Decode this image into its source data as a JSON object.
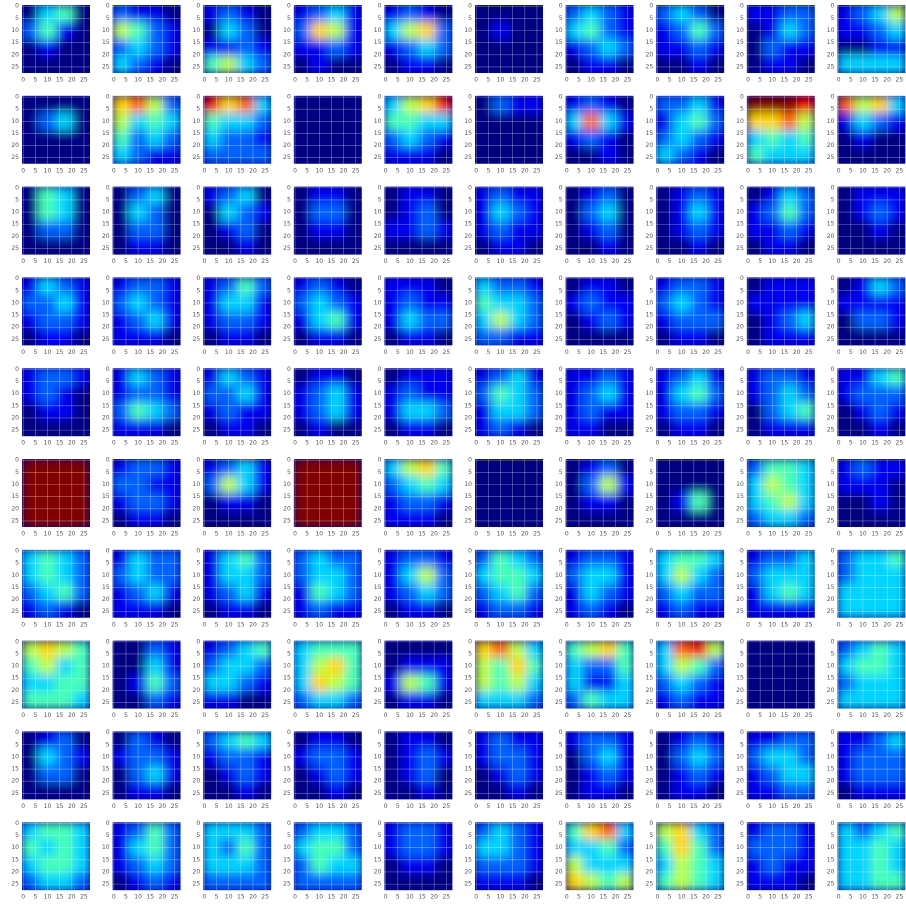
{
  "chart_data": {
    "type": "heatmap-grid",
    "colormap": "jet",
    "zlim": [
      0,
      9
    ],
    "xlim": [
      -0.5,
      27.5
    ],
    "ylim": [
      -0.5,
      27.5
    ],
    "y_inverted": true,
    "xticks": [
      0,
      5,
      10,
      15,
      20,
      25
    ],
    "yticks": [
      0,
      5,
      10,
      15,
      20,
      25
    ],
    "grid": true,
    "columns": 10,
    "panels": [
      [
        0,
        3,
        4,
        0,
        2,
        4,
        1,
        0,
        0,
        1,
        0,
        0,
        0,
        0,
        0,
        0
      ],
      [
        2,
        1,
        1,
        0,
        5,
        4,
        2,
        1,
        2,
        3,
        2,
        1,
        3,
        2,
        1,
        0
      ],
      [
        1,
        2,
        1,
        0,
        0,
        3,
        2,
        0,
        1,
        1,
        2,
        1,
        4,
        5,
        3,
        2
      ],
      [
        1,
        2,
        3,
        1,
        2,
        6,
        5,
        1,
        1,
        1,
        2,
        1,
        0,
        1,
        0,
        0
      ],
      [
        1,
        2,
        1,
        0,
        3,
        5,
        6,
        2,
        1,
        2,
        3,
        2,
        0,
        1,
        1,
        0
      ],
      [
        0,
        0,
        0,
        0,
        0,
        1,
        0,
        0,
        0,
        0,
        0,
        0,
        0,
        0,
        0,
        0
      ],
      [
        2,
        3,
        2,
        1,
        3,
        4,
        2,
        1,
        1,
        2,
        3,
        2,
        0,
        1,
        1,
        0
      ],
      [
        2,
        3,
        2,
        0,
        1,
        2,
        4,
        2,
        1,
        1,
        2,
        1,
        0,
        0,
        1,
        0
      ],
      [
        1,
        1,
        2,
        2,
        0,
        1,
        3,
        2,
        0,
        2,
        1,
        1,
        0,
        1,
        1,
        0
      ],
      [
        1,
        2,
        3,
        5,
        1,
        1,
        2,
        3,
        0,
        0,
        1,
        1,
        3,
        3,
        3,
        3
      ],
      [
        0,
        0,
        0,
        0,
        0,
        2,
        3,
        0,
        0,
        0,
        0,
        0,
        0,
        0,
        0,
        0
      ],
      [
        6,
        7,
        5,
        2,
        5,
        3,
        4,
        3,
        4,
        2,
        3,
        2,
        3,
        2,
        1,
        1
      ],
      [
        8,
        6,
        7,
        3,
        4,
        3,
        3,
        2,
        3,
        2,
        2,
        1,
        2,
        2,
        2,
        2
      ],
      [
        0,
        0,
        0,
        0,
        0,
        0,
        0,
        0,
        0,
        0,
        0,
        0,
        0,
        0,
        0,
        0
      ],
      [
        3,
        5,
        6,
        8,
        4,
        4,
        3,
        3,
        2,
        3,
        2,
        1,
        1,
        1,
        1,
        0
      ],
      [
        0,
        2,
        1,
        1,
        0,
        0,
        0,
        0,
        0,
        0,
        0,
        0,
        0,
        0,
        0,
        0
      ],
      [
        1,
        2,
        1,
        0,
        3,
        7,
        3,
        1,
        1,
        2,
        1,
        0,
        0,
        0,
        1,
        0
      ],
      [
        2,
        2,
        3,
        1,
        1,
        3,
        4,
        2,
        2,
        3,
        2,
        1,
        3,
        2,
        1,
        0
      ],
      [
        9,
        9,
        9,
        8,
        6,
        6,
        7,
        5,
        3,
        4,
        3,
        4,
        4,
        3,
        3,
        3
      ],
      [
        7,
        5,
        6,
        3,
        1,
        3,
        2,
        1,
        0,
        1,
        0,
        0,
        0,
        0,
        0,
        0
      ],
      [
        0,
        4,
        3,
        0,
        0,
        4,
        3,
        0,
        0,
        2,
        2,
        0,
        0,
        0,
        0,
        0
      ],
      [
        0,
        2,
        3,
        0,
        0,
        3,
        2,
        0,
        0,
        2,
        2,
        0,
        0,
        1,
        1,
        0
      ],
      [
        1,
        2,
        3,
        0,
        0,
        3,
        2,
        1,
        0,
        1,
        2,
        0,
        0,
        0,
        1,
        0
      ],
      [
        0,
        1,
        1,
        0,
        0,
        2,
        2,
        0,
        0,
        1,
        1,
        0,
        0,
        0,
        0,
        0
      ],
      [
        0,
        1,
        1,
        0,
        0,
        1,
        2,
        0,
        1,
        1,
        2,
        1,
        0,
        0,
        0,
        0
      ],
      [
        1,
        2,
        1,
        1,
        1,
        3,
        2,
        1,
        1,
        2,
        1,
        1,
        0,
        1,
        1,
        0
      ],
      [
        0,
        1,
        2,
        0,
        0,
        2,
        3,
        0,
        0,
        1,
        2,
        0,
        0,
        0,
        1,
        0
      ],
      [
        0,
        1,
        2,
        1,
        0,
        1,
        3,
        1,
        0,
        1,
        2,
        1,
        0,
        0,
        1,
        0
      ],
      [
        0,
        1,
        3,
        2,
        1,
        2,
        4,
        2,
        1,
        1,
        2,
        1,
        0,
        1,
        1,
        0
      ],
      [
        0,
        1,
        1,
        1,
        0,
        1,
        2,
        1,
        0,
        0,
        1,
        0,
        0,
        0,
        0,
        0
      ],
      [
        1,
        3,
        2,
        1,
        2,
        2,
        3,
        1,
        1,
        2,
        2,
        1,
        0,
        1,
        1,
        0
      ],
      [
        1,
        2,
        2,
        1,
        2,
        3,
        2,
        1,
        1,
        2,
        3,
        1,
        1,
        1,
        1,
        0
      ],
      [
        1,
        2,
        4,
        2,
        1,
        3,
        3,
        1,
        1,
        2,
        2,
        1,
        0,
        1,
        1,
        0
      ],
      [
        1,
        2,
        1,
        0,
        2,
        3,
        2,
        1,
        1,
        3,
        4,
        1,
        0,
        1,
        1,
        0
      ],
      [
        1,
        1,
        1,
        0,
        1,
        2,
        1,
        1,
        1,
        3,
        2,
        2,
        0,
        1,
        1,
        0
      ],
      [
        3,
        2,
        2,
        1,
        4,
        3,
        3,
        2,
        3,
        5,
        3,
        2,
        2,
        2,
        1,
        1
      ],
      [
        0,
        1,
        1,
        0,
        1,
        2,
        1,
        1,
        0,
        1,
        2,
        1,
        0,
        0,
        0,
        0
      ],
      [
        1,
        2,
        2,
        1,
        2,
        3,
        2,
        1,
        1,
        2,
        2,
        2,
        0,
        1,
        1,
        0
      ],
      [
        0,
        1,
        1,
        1,
        1,
        1,
        1,
        1,
        0,
        1,
        2,
        3,
        0,
        1,
        1,
        1
      ],
      [
        0,
        1,
        3,
        2,
        1,
        1,
        1,
        1,
        0,
        2,
        2,
        1,
        0,
        0,
        0,
        0
      ],
      [
        1,
        2,
        2,
        1,
        1,
        2,
        1,
        0,
        0,
        1,
        1,
        0,
        0,
        0,
        0,
        0
      ],
      [
        1,
        3,
        2,
        1,
        1,
        2,
        2,
        1,
        2,
        4,
        3,
        2,
        1,
        1,
        1,
        0
      ],
      [
        1,
        3,
        2,
        1,
        2,
        2,
        3,
        1,
        1,
        2,
        1,
        1,
        0,
        1,
        1,
        0
      ],
      [
        0,
        1,
        1,
        0,
        1,
        2,
        3,
        1,
        1,
        2,
        3,
        1,
        0,
        1,
        0,
        0
      ],
      [
        0,
        1,
        1,
        1,
        1,
        2,
        1,
        1,
        1,
        3,
        3,
        2,
        0,
        1,
        1,
        0
      ],
      [
        1,
        2,
        3,
        1,
        2,
        4,
        3,
        2,
        1,
        3,
        3,
        2,
        1,
        2,
        1,
        0
      ],
      [
        1,
        1,
        2,
        1,
        1,
        2,
        3,
        1,
        1,
        2,
        1,
        1,
        1,
        1,
        0,
        0
      ],
      [
        1,
        2,
        3,
        1,
        1,
        3,
        4,
        2,
        1,
        2,
        2,
        1,
        0,
        1,
        1,
        0
      ],
      [
        1,
        2,
        2,
        1,
        1,
        2,
        3,
        2,
        0,
        2,
        3,
        4,
        0,
        1,
        1,
        1
      ],
      [
        1,
        1,
        3,
        4,
        1,
        2,
        2,
        2,
        0,
        1,
        2,
        1,
        0,
        0,
        1,
        0
      ],
      [
        9,
        9,
        9,
        9,
        9,
        9,
        9,
        9,
        9,
        9,
        9,
        9,
        9,
        9,
        9,
        9
      ],
      [
        1,
        2,
        2,
        1,
        2,
        2,
        1,
        1,
        1,
        2,
        2,
        1,
        0,
        1,
        1,
        0
      ],
      [
        1,
        2,
        3,
        1,
        2,
        5,
        3,
        1,
        0,
        1,
        1,
        0,
        0,
        0,
        0,
        0
      ],
      [
        9,
        9,
        9,
        9,
        9,
        9,
        9,
        9,
        9,
        9,
        9,
        9,
        9,
        9,
        9,
        9
      ],
      [
        3,
        5,
        6,
        4,
        2,
        3,
        4,
        3,
        1,
        2,
        2,
        1,
        1,
        1,
        1,
        0
      ],
      [
        0,
        0,
        0,
        0,
        0,
        0,
        0,
        0,
        0,
        0,
        0,
        0,
        0,
        0,
        0,
        0
      ],
      [
        0,
        1,
        2,
        0,
        0,
        2,
        5,
        1,
        0,
        1,
        1,
        0,
        0,
        0,
        0,
        0
      ],
      [
        0,
        0,
        0,
        0,
        0,
        0,
        0,
        0,
        0,
        1,
        4,
        0,
        0,
        0,
        0,
        0
      ],
      [
        2,
        4,
        4,
        3,
        3,
        5,
        4,
        3,
        3,
        4,
        5,
        3,
        2,
        3,
        3,
        2
      ],
      [
        1,
        2,
        1,
        1,
        1,
        1,
        1,
        0,
        0,
        0,
        1,
        0,
        0,
        0,
        0,
        0
      ],
      [
        3,
        4,
        3,
        2,
        3,
        4,
        3,
        2,
        2,
        3,
        4,
        2,
        1,
        2,
        1,
        0
      ],
      [
        1,
        3,
        2,
        2,
        2,
        3,
        2,
        2,
        1,
        2,
        3,
        1,
        1,
        1,
        1,
        0
      ],
      [
        1,
        3,
        4,
        2,
        1,
        3,
        3,
        2,
        1,
        2,
        3,
        1,
        0,
        1,
        1,
        0
      ],
      [
        2,
        3,
        2,
        2,
        2,
        3,
        3,
        2,
        1,
        4,
        3,
        2,
        1,
        2,
        1,
        1
      ],
      [
        1,
        2,
        2,
        1,
        1,
        3,
        5,
        2,
        1,
        2,
        3,
        2,
        0,
        1,
        1,
        0
      ],
      [
        2,
        4,
        3,
        2,
        3,
        4,
        4,
        3,
        2,
        3,
        4,
        2,
        1,
        2,
        2,
        1
      ],
      [
        1,
        2,
        2,
        1,
        2,
        3,
        3,
        1,
        1,
        3,
        2,
        1,
        1,
        2,
        1,
        0
      ],
      [
        3,
        4,
        4,
        3,
        3,
        5,
        3,
        2,
        2,
        3,
        2,
        2,
        1,
        2,
        1,
        1
      ],
      [
        1,
        2,
        2,
        3,
        2,
        3,
        3,
        3,
        1,
        3,
        4,
        3,
        1,
        1,
        1,
        1
      ],
      [
        2,
        3,
        3,
        4,
        2,
        3,
        3,
        3,
        3,
        3,
        3,
        3,
        3,
        3,
        3,
        3
      ],
      [
        5,
        6,
        5,
        4,
        4,
        5,
        3,
        4,
        3,
        3,
        4,
        4,
        4,
        4,
        4,
        3
      ],
      [
        0,
        0,
        2,
        1,
        0,
        0,
        3,
        1,
        0,
        1,
        4,
        2,
        0,
        0,
        2,
        1
      ],
      [
        1,
        2,
        3,
        4,
        2,
        3,
        3,
        2,
        3,
        3,
        2,
        1,
        1,
        1,
        0,
        0
      ],
      [
        3,
        4,
        4,
        4,
        3,
        5,
        6,
        4,
        3,
        6,
        5,
        4,
        2,
        3,
        3,
        2
      ],
      [
        0,
        0,
        0,
        0,
        0,
        1,
        1,
        1,
        1,
        5,
        4,
        1,
        0,
        1,
        1,
        0
      ],
      [
        6,
        7,
        5,
        3,
        5,
        4,
        6,
        4,
        5,
        4,
        5,
        3,
        3,
        3,
        3,
        2
      ],
      [
        4,
        5,
        6,
        4,
        3,
        2,
        2,
        4,
        3,
        1,
        1,
        3,
        2,
        4,
        3,
        3
      ],
      [
        3,
        7,
        8,
        5,
        3,
        5,
        4,
        2,
        2,
        3,
        2,
        1,
        1,
        2,
        1,
        1
      ],
      [
        0,
        0,
        0,
        0,
        0,
        0,
        0,
        0,
        0,
        0,
        0,
        0,
        0,
        0,
        0,
        0
      ],
      [
        2,
        3,
        4,
        3,
        3,
        4,
        4,
        3,
        2,
        3,
        3,
        3,
        3,
        3,
        3,
        3
      ],
      [
        0,
        1,
        2,
        0,
        0,
        3,
        2,
        1,
        0,
        2,
        2,
        0,
        0,
        0,
        0,
        0
      ],
      [
        0,
        2,
        1,
        0,
        1,
        2,
        2,
        1,
        0,
        2,
        3,
        1,
        0,
        1,
        1,
        0
      ],
      [
        2,
        3,
        4,
        3,
        1,
        2,
        2,
        1,
        0,
        1,
        2,
        1,
        0,
        0,
        1,
        0
      ],
      [
        0,
        1,
        1,
        0,
        1,
        2,
        2,
        1,
        0,
        1,
        2,
        1,
        0,
        0,
        1,
        0
      ],
      [
        0,
        1,
        1,
        0,
        0,
        1,
        2,
        1,
        0,
        1,
        2,
        0,
        0,
        0,
        1,
        0
      ],
      [
        1,
        2,
        1,
        1,
        1,
        2,
        2,
        1,
        0,
        1,
        2,
        1,
        0,
        0,
        1,
        0
      ],
      [
        1,
        2,
        2,
        1,
        0,
        2,
        3,
        1,
        0,
        1,
        2,
        1,
        0,
        1,
        1,
        0
      ],
      [
        0,
        1,
        2,
        1,
        0,
        2,
        3,
        2,
        0,
        1,
        2,
        1,
        0,
        1,
        1,
        0
      ],
      [
        1,
        1,
        2,
        2,
        2,
        3,
        3,
        2,
        1,
        2,
        3,
        3,
        1,
        1,
        2,
        2
      ],
      [
        1,
        1,
        2,
        3,
        1,
        2,
        2,
        2,
        1,
        2,
        2,
        2,
        0,
        1,
        1,
        1
      ],
      [
        3,
        4,
        4,
        3,
        4,
        3,
        4,
        3,
        3,
        4,
        4,
        3,
        2,
        3,
        3,
        2
      ],
      [
        1,
        2,
        4,
        2,
        1,
        3,
        4,
        2,
        1,
        2,
        3,
        2,
        0,
        1,
        2,
        1
      ],
      [
        3,
        3,
        3,
        2,
        3,
        2,
        4,
        2,
        3,
        3,
        3,
        2,
        2,
        2,
        2,
        2
      ],
      [
        2,
        3,
        3,
        2,
        3,
        4,
        4,
        2,
        2,
        4,
        3,
        3,
        2,
        2,
        2,
        2
      ],
      [
        1,
        2,
        2,
        1,
        1,
        2,
        2,
        1,
        0,
        1,
        1,
        0,
        0,
        0,
        0,
        0
      ],
      [
        2,
        3,
        2,
        1,
        3,
        3,
        2,
        1,
        2,
        2,
        2,
        1,
        1,
        1,
        1,
        0
      ],
      [
        4,
        6,
        7,
        3,
        3,
        3,
        4,
        2,
        5,
        3,
        3,
        3,
        6,
        5,
        4,
        5
      ],
      [
        5,
        6,
        3,
        2,
        4,
        6,
        4,
        2,
        3,
        5,
        4,
        3,
        4,
        5,
        4,
        3
      ],
      [
        1,
        2,
        2,
        1,
        2,
        2,
        2,
        1,
        1,
        2,
        1,
        1,
        1,
        1,
        1,
        0
      ],
      [
        3,
        2,
        3,
        4,
        3,
        3,
        4,
        3,
        3,
        3,
        4,
        3,
        3,
        3,
        4,
        4
      ]
    ]
  }
}
